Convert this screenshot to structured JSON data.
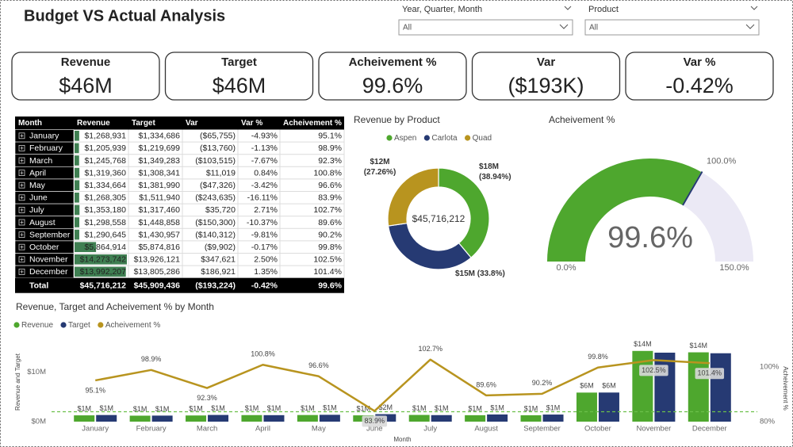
{
  "header": {
    "title": "Budget VS Actual Analysis"
  },
  "slicers": [
    {
      "label": "Year, Quarter, Month",
      "value": "All"
    },
    {
      "label": "Product",
      "value": "All"
    }
  ],
  "cards": [
    {
      "label": "Revenue",
      "value": "$46M"
    },
    {
      "label": "Target",
      "value": "$46M"
    },
    {
      "label": "Acheivement %",
      "value": "99.6%"
    },
    {
      "label": "Var",
      "value": "($193K)"
    },
    {
      "label": "Var %",
      "value": "-0.42%"
    }
  ],
  "table": {
    "columns": [
      "Month",
      "Revenue",
      "Target",
      "Var",
      "Var %",
      "Acheivement %"
    ],
    "rows": [
      [
        "January",
        "$1,268,931",
        "$1,334,686",
        "($65,755)",
        "-4.93%",
        "95.1%"
      ],
      [
        "February",
        "$1,205,939",
        "$1,219,699",
        "($13,760)",
        "-1.13%",
        "98.9%"
      ],
      [
        "March",
        "$1,245,768",
        "$1,349,283",
        "($103,515)",
        "-7.67%",
        "92.3%"
      ],
      [
        "April",
        "$1,319,360",
        "$1,308,341",
        "$11,019",
        "0.84%",
        "100.8%"
      ],
      [
        "May",
        "$1,334,664",
        "$1,381,990",
        "($47,326)",
        "-3.42%",
        "96.6%"
      ],
      [
        "June",
        "$1,268,305",
        "$1,511,940",
        "($243,635)",
        "-16.11%",
        "83.9%"
      ],
      [
        "July",
        "$1,353,180",
        "$1,317,460",
        "$35,720",
        "2.71%",
        "102.7%"
      ],
      [
        "August",
        "$1,298,558",
        "$1,448,858",
        "($150,300)",
        "-10.37%",
        "89.6%"
      ],
      [
        "September",
        "$1,290,645",
        "$1,430,957",
        "($140,312)",
        "-9.81%",
        "90.2%"
      ],
      [
        "October",
        "$5,864,914",
        "$5,874,816",
        "($9,902)",
        "-0.17%",
        "99.8%"
      ],
      [
        "November",
        "$14,273,742",
        "$13,926,121",
        "$347,621",
        "2.50%",
        "102.5%"
      ],
      [
        "December",
        "$13,992,207",
        "$13,805,286",
        "$186,921",
        "1.35%",
        "101.4%"
      ]
    ],
    "total": [
      "Total",
      "$45,716,212",
      "$45,909,436",
      "($193,224)",
      "-0.42%",
      "99.6%"
    ]
  },
  "chart_data": [
    {
      "type": "donut",
      "title": "Revenue by Product",
      "categories": [
        "Aspen",
        "Carlota",
        "Quad"
      ],
      "values": [
        38.94,
        33.8,
        27.26
      ],
      "value_labels": [
        "$18M (38.94%)",
        "$15M (33.8%)",
        "$12M (27.26%)"
      ],
      "colors": [
        "#4ea72e",
        "#263a73",
        "#b8941f"
      ],
      "center_label": "$45,716,212"
    },
    {
      "type": "gauge",
      "title": "Acheivement %",
      "value": 99.6,
      "value_label": "99.6%",
      "ylim": [
        0,
        150
      ],
      "yticks": [
        {
          "value": 0,
          "label": "0.0%"
        },
        {
          "value": 150,
          "label": "150.0%"
        }
      ],
      "target": {
        "value": 100,
        "label": "100.0%"
      },
      "color": "#4ea72e",
      "track_color": "#ebe9f5",
      "target_color": "#263a73"
    },
    {
      "type": "combo",
      "title": "Revenue, Target and Acheivement % by Month",
      "x_label": "Month",
      "y_label": "Revenue and Target",
      "y2_label": "Acheivement %",
      "categories": [
        "January",
        "February",
        "March",
        "April",
        "May",
        "June",
        "July",
        "August",
        "September",
        "October",
        "November",
        "December"
      ],
      "series": [
        {
          "name": "Revenue",
          "type": "bar",
          "color": "#4ea72e",
          "values": [
            1268931,
            1205939,
            1245768,
            1319360,
            1334664,
            1268305,
            1353180,
            1298558,
            1290645,
            5864914,
            14273742,
            13992207
          ],
          "value_labels": [
            "$1M",
            "$1M",
            "$1M",
            "$1M",
            "$1M",
            "$1M",
            "$1M",
            "$1M",
            "$1M",
            "$6M",
            "$14M",
            "$14M"
          ]
        },
        {
          "name": "Target",
          "type": "bar",
          "color": "#263a73",
          "values": [
            1334686,
            1219699,
            1349283,
            1308341,
            1381990,
            1511940,
            1317460,
            1448858,
            1430957,
            5874816,
            13926121,
            13805286
          ],
          "value_labels": [
            "$1M",
            "$1M",
            "$1M",
            "$1M",
            "$1M",
            "$2M",
            "$1M",
            "$1M",
            "$1M",
            "$6M",
            null,
            null
          ]
        },
        {
          "name": "Acheivement %",
          "type": "line",
          "axis": "y2",
          "color": "#b8941f",
          "values": [
            95.1,
            98.9,
            92.3,
            100.8,
            96.6,
            83.9,
            102.7,
            89.6,
            90.2,
            99.8,
            102.5,
            101.4
          ],
          "value_labels": [
            "95.1%",
            "98.9%",
            "92.3%",
            "100.8%",
            "96.6%",
            "83.9%",
            "102.7%",
            "89.6%",
            "90.2%",
            "99.8%",
            "102.5%",
            "101.4%"
          ]
        }
      ],
      "ylim": [
        0,
        16000000
      ],
      "yticks": [
        {
          "value": 0,
          "label": "$0M"
        },
        {
          "value": 10000000,
          "label": "$10M"
        }
      ],
      "y2lim": [
        80,
        109
      ],
      "y2ticks": [
        {
          "value": 80,
          "label": "80%"
        },
        {
          "value": 100,
          "label": "100%"
        }
      ],
      "reference_line": {
        "value": 2000000,
        "color": "#6cc04a"
      }
    }
  ]
}
